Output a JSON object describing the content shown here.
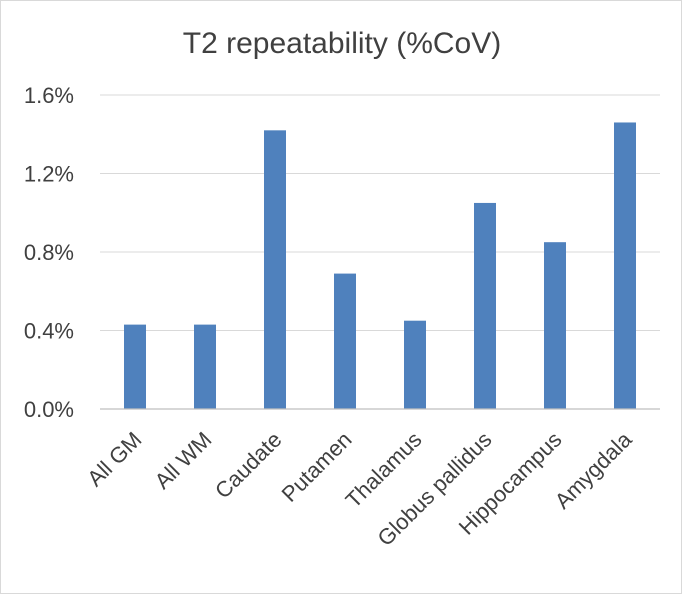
{
  "chart_data": {
    "type": "bar",
    "title": "T2 repeatability (%CoV)",
    "xlabel": "",
    "ylabel": "",
    "categories": [
      "All GM",
      "All WM",
      "Caudate",
      "Putamen",
      "Thalamus",
      "Globus pallidus",
      "Hippocampus",
      "Amygdala"
    ],
    "values": [
      0.43,
      0.43,
      1.42,
      0.69,
      0.45,
      1.05,
      0.85,
      1.46
    ],
    "value_unit": "%",
    "ylim": [
      0,
      1.6
    ],
    "yticks": [
      0.0,
      0.4,
      0.8,
      1.2,
      1.6
    ],
    "ytick_labels": [
      "0.0%",
      "0.4%",
      "0.8%",
      "1.2%",
      "1.6%"
    ],
    "grid": true,
    "legend": "none",
    "bar_color": "#4f81bd"
  }
}
